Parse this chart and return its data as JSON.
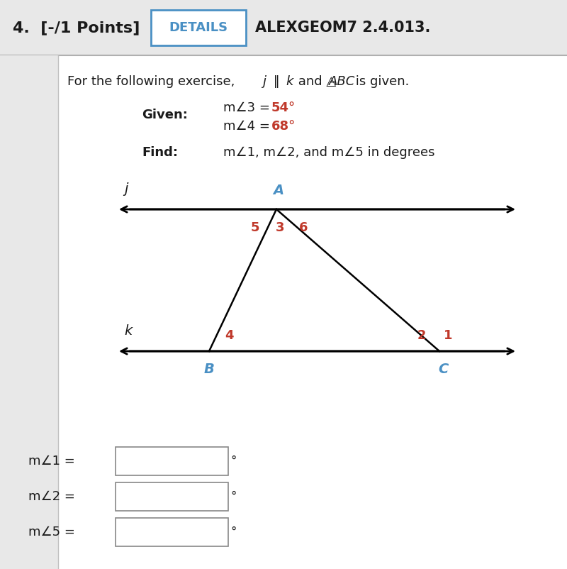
{
  "bg_color": "#e8e8e8",
  "white_bg": "#ffffff",
  "header_text": "4.  [-/1 Points]",
  "details_text": "DETAILS",
  "details_box_color": "#4a90c4",
  "alexgeom_text": "ALEXGEOM7 2.4.013.",
  "problem_text_1": "For the following exercise, ",
  "problem_italic_j": "j",
  "problem_text_2": " ‖ ",
  "problem_italic_k": "k",
  "problem_text_3": " and △",
  "problem_italic_ABC": "ABC",
  "problem_text_4": " is given.",
  "given_label": "Given:",
  "given_line1_black": "m∠3 = ",
  "given_line1_red": "54°",
  "given_line2_black": "m∠4 = ",
  "given_line2_red": "68°",
  "find_label": "Find:",
  "find_text": "m∠1, m∠2, and m∠5 in degrees",
  "j_label": "j",
  "k_label": "k",
  "A_label": "A",
  "B_label": "B",
  "C_label": "C",
  "label_color_blue": "#4a90c4",
  "label_color_red": "#c0392b",
  "label_color_black": "#1a1a1a",
  "angle1_label": "1",
  "angle2_label": "2",
  "angle3_label": "3",
  "angle4_label": "4",
  "angle5_label": "5",
  "angle6_label": "6",
  "ans_label1": "m∠1 = ",
  "ans_label2": "m∠2 = ",
  "ans_label3": "m∠5 = "
}
